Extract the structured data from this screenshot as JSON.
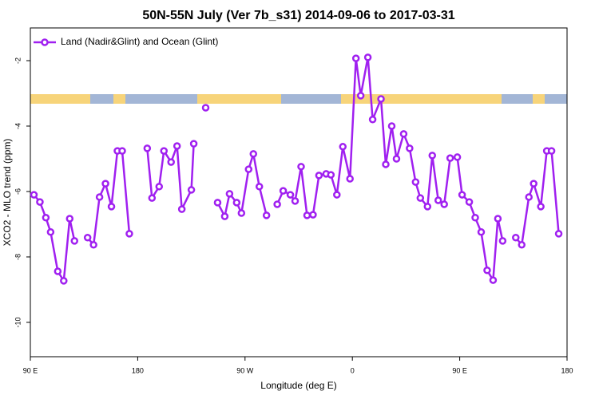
{
  "chart_data": {
    "type": "line",
    "title": "50N-55N July (Ver 7b_s31)   2014-09-06 to 2017-03-31",
    "x_label": "Longitude (deg E)",
    "y_label": "XCO2 - MLO trend (ppm)",
    "xlim": [
      90,
      540
    ],
    "ylim": [
      -11.05,
      -1.0
    ],
    "xticks": [
      {
        "value": 90,
        "label": "90 E"
      },
      180,
      {
        "value": 270,
        "label": "90 W"
      },
      {
        "value": 360,
        "label": "0"
      },
      {
        "value": 450,
        "label": "90 E"
      },
      {
        "value": 540,
        "label": "180"
      }
    ],
    "yticks": [
      -2,
      -4,
      -6,
      -8,
      -10
    ],
    "legend": "top-left",
    "series": [
      {
        "name": "Land (Nadir&Glint) and Ocean (Glint)",
        "color": "#a020f0",
        "x": [
          93,
          98,
          103,
          107,
          113,
          118,
          123,
          127,
          null,
          138,
          143,
          148,
          153,
          158,
          163,
          167,
          173,
          null,
          188,
          192,
          198,
          202,
          208,
          213,
          217,
          225,
          227,
          null,
          237,
          null,
          247,
          253,
          257,
          263,
          267,
          273,
          277,
          282,
          288,
          null,
          297,
          302,
          308,
          312,
          317,
          322,
          327,
          332,
          338,
          342,
          347,
          352,
          358,
          363,
          367,
          373,
          377,
          384,
          388,
          393,
          397,
          403,
          408,
          413,
          417,
          423,
          427,
          432,
          437,
          442,
          448,
          452,
          458,
          463,
          468,
          473,
          478,
          482,
          486,
          null,
          497,
          502,
          508,
          512,
          518,
          523,
          527,
          533
        ],
        "values": [
          -6.1,
          -6.32,
          -6.8,
          -7.24,
          -8.44,
          -8.73,
          -6.83,
          -7.51,
          null,
          -7.41,
          -7.63,
          -6.17,
          -5.76,
          -6.46,
          -4.76,
          -4.76,
          -7.29,
          null,
          -4.68,
          -6.2,
          -5.85,
          -4.76,
          -5.1,
          -4.61,
          -6.54,
          -5.95,
          -4.54,
          null,
          -3.44,
          null,
          -6.34,
          -6.76,
          -6.07,
          -6.34,
          -6.66,
          -5.32,
          -4.85,
          -5.85,
          -6.73,
          null,
          -6.39,
          -5.98,
          -6.1,
          -6.29,
          -5.24,
          -6.73,
          -6.71,
          -5.51,
          -5.46,
          -5.49,
          -6.1,
          -4.63,
          -5.61,
          -1.93,
          -3.07,
          -1.9,
          -3.8,
          -3.17,
          -5.17,
          -4.0,
          -5.0,
          -4.24,
          -4.68,
          -5.71,
          -6.2,
          -6.46,
          -4.9,
          -6.27,
          -6.39,
          -4.98,
          -4.95,
          -6.1,
          -6.32,
          -6.8,
          -7.24,
          -8.41,
          -8.71,
          -6.83,
          -7.51,
          null,
          -7.41,
          -7.63,
          -6.17,
          -5.76,
          -6.46,
          -4.76,
          -4.76,
          -7.29
        ]
      }
    ]
  }
}
